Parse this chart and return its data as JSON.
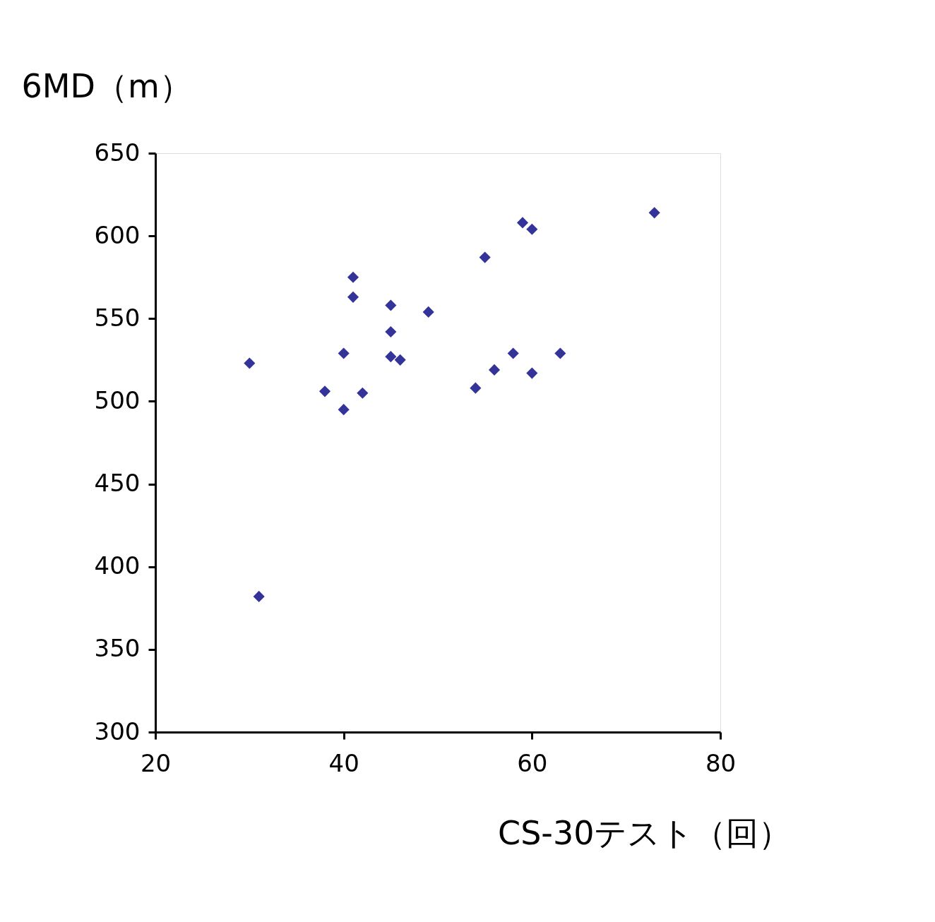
{
  "chart_data": {
    "type": "scatter",
    "ylabel": "6MD（m）",
    "xlabel": "CS-30テスト（回）",
    "x": [
      30,
      31,
      38,
      40,
      40,
      41,
      41,
      42,
      45,
      45,
      45,
      46,
      49,
      54,
      55,
      56,
      58,
      59,
      60,
      60,
      63,
      73
    ],
    "series": [
      {
        "color": "#333399",
        "values": [
          523,
          382,
          506,
          495,
          529,
          575,
          563,
          505,
          558,
          542,
          527,
          525,
          554,
          508,
          587,
          519,
          529,
          608,
          604,
          517,
          529,
          614
        ]
      }
    ],
    "xlim": [
      20,
      80
    ],
    "xticks": [
      20,
      40,
      60,
      80
    ],
    "ylim": [
      300,
      650
    ],
    "yticks": [
      300,
      350,
      400,
      450,
      500,
      550,
      600,
      650
    ],
    "marker": "diamond",
    "grid": false,
    "legend": false
  }
}
